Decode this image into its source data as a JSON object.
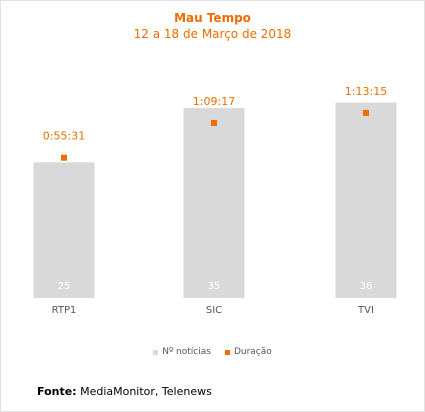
{
  "header": {
    "title": "Mau Tempo",
    "subtitle": "12 a 18 de Março de 2018"
  },
  "chart_data": {
    "type": "bar",
    "categories": [
      "RTP1",
      "SIC",
      "TVI"
    ],
    "series": [
      {
        "name": "Nº notícias",
        "values": [
          25,
          35,
          36
        ],
        "color": "#d9d9d9",
        "value_label_color": "#ffffff"
      },
      {
        "name": "Duração",
        "type": "scatter",
        "values_seconds": [
          3331,
          4157,
          4395
        ],
        "labels": [
          "0:55:31",
          "1:09:17",
          "1:13:15"
        ],
        "color": "#ef6c00"
      }
    ],
    "ylim_bars": [
      0,
      38.5
    ],
    "ylim_duration_seconds": [
      0,
      4963
    ],
    "gridlines": false,
    "legend_position": "bottom"
  },
  "legend": {
    "items": [
      {
        "label": "Nº notícias",
        "color": "#d9d9d9"
      },
      {
        "label": "Duração",
        "color": "#ef6c00"
      }
    ]
  },
  "source": {
    "label": "Fonte:",
    "text": "MediaMonitor, Telenews"
  },
  "colors": {
    "accent": "#ef6c00",
    "bar": "#d9d9d9",
    "axis_text": "#555555"
  }
}
